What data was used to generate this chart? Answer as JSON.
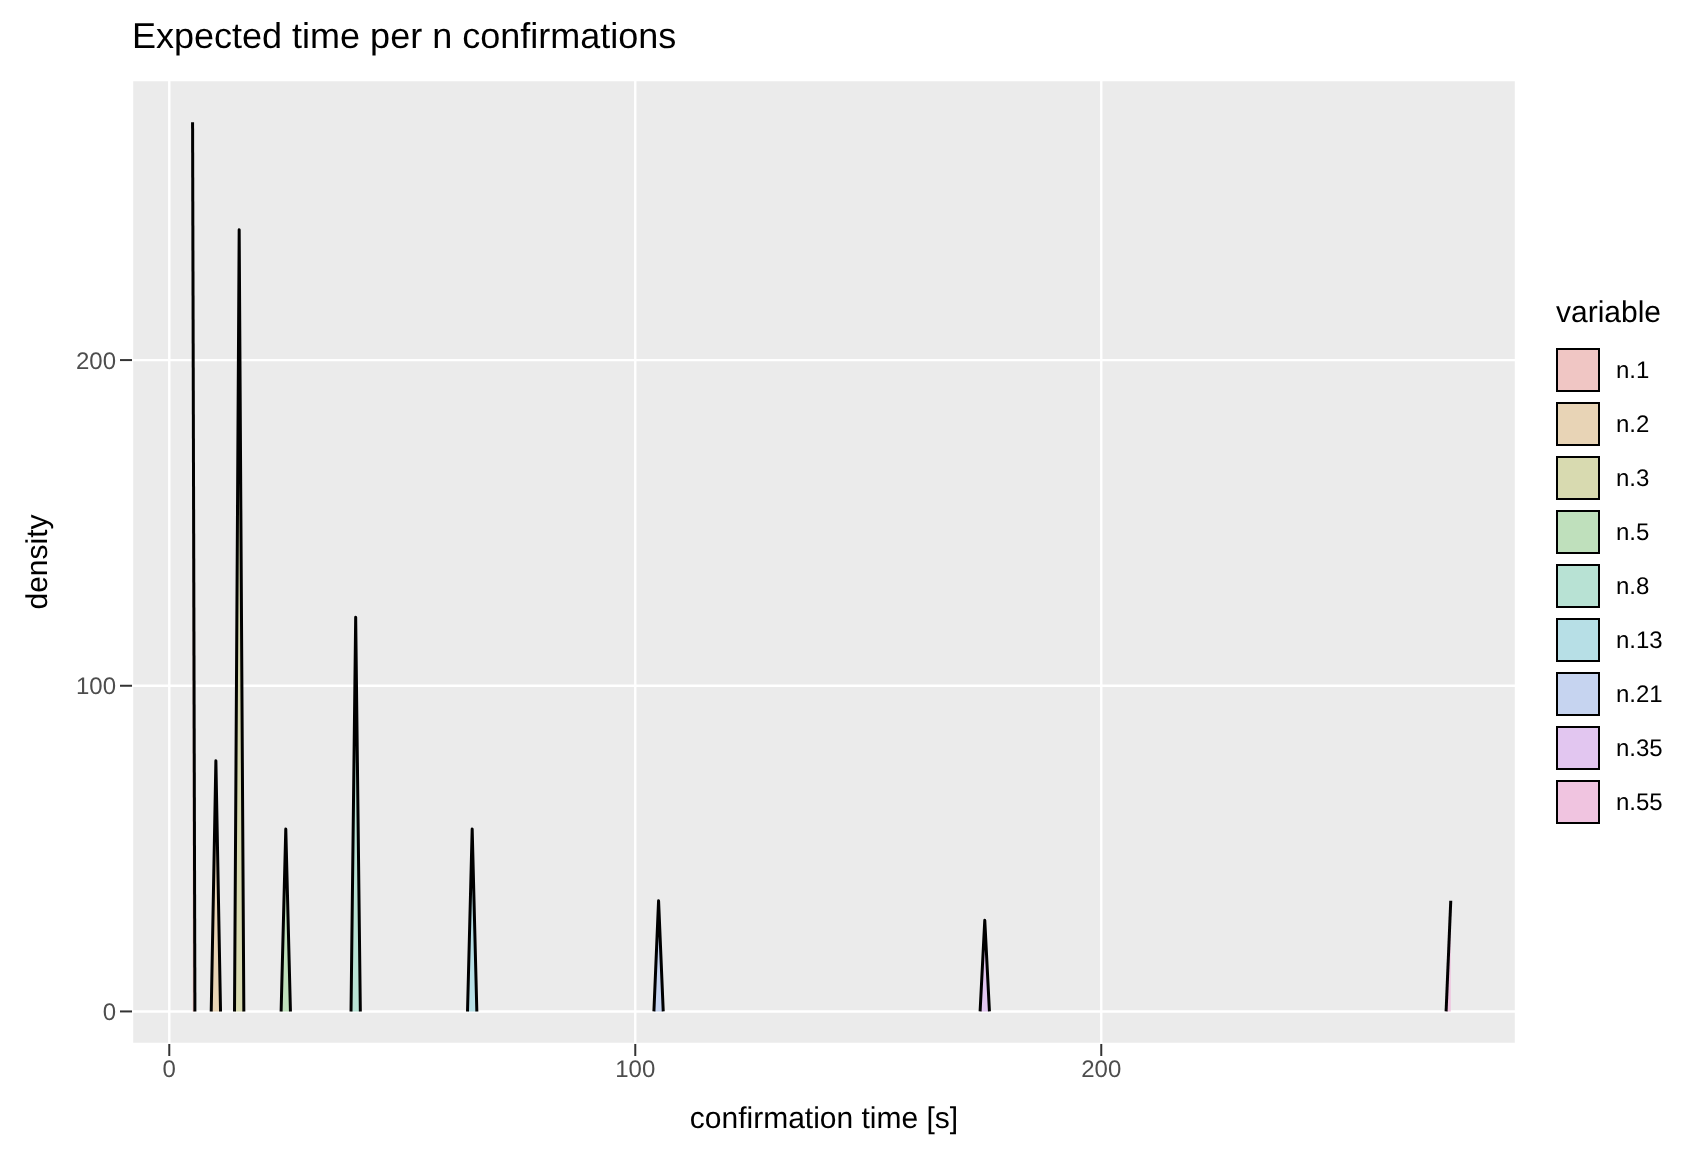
{
  "chart_data": {
    "type": "area",
    "title": "Expected time per n confirmations",
    "xlabel": "confirmation time [s]",
    "ylabel": "density",
    "legend_title": "variable",
    "xlim": [
      -8,
      289
    ],
    "xticks": [
      0,
      100,
      200
    ],
    "ylim": [
      -10,
      286
    ],
    "yticks": [
      0,
      100,
      200
    ],
    "grid": true,
    "legend": "right",
    "series": [
      {
        "name": "n.1",
        "color": "#f0c6c4",
        "x": [
          5,
          5.5
        ],
        "values": [
          273,
          0
        ]
      },
      {
        "name": "n.2",
        "color": "#e8d4b6",
        "x": [
          9,
          10,
          11
        ],
        "values": [
          0,
          77,
          0
        ]
      },
      {
        "name": "n.3",
        "color": "#d8dab0",
        "x": [
          14,
          15,
          16
        ],
        "values": [
          0,
          240,
          0
        ]
      },
      {
        "name": "n.5",
        "color": "#bfe0bc",
        "x": [
          24,
          25,
          26
        ],
        "values": [
          0,
          56,
          0
        ]
      },
      {
        "name": "n.8",
        "color": "#b8e2d4",
        "x": [
          39,
          40,
          41
        ],
        "values": [
          0,
          121,
          0
        ]
      },
      {
        "name": "n.13",
        "color": "#b7dfe6",
        "x": [
          64,
          65,
          66
        ],
        "values": [
          0,
          56,
          0
        ]
      },
      {
        "name": "n.21",
        "color": "#c6d4f0",
        "x": [
          104,
          105,
          106
        ],
        "values": [
          0,
          34,
          0
        ]
      },
      {
        "name": "n.35",
        "color": "#e2c6f0",
        "x": [
          174,
          175,
          176
        ],
        "values": [
          0,
          28,
          0
        ]
      },
      {
        "name": "n.55",
        "color": "#f0c4e0",
        "x": [
          274,
          275
        ],
        "values": [
          0,
          34
        ]
      }
    ]
  }
}
